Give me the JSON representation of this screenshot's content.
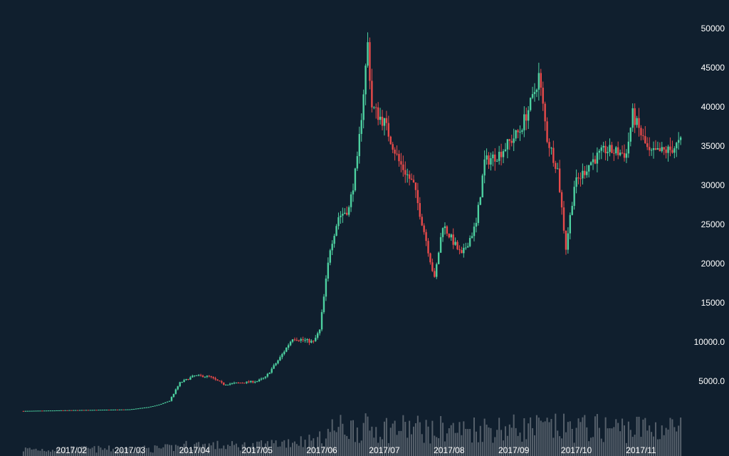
{
  "chart_data": {
    "type": "candlestick",
    "title": "",
    "xlabel": "",
    "ylabel": "",
    "grid": false,
    "legend": "none",
    "y_axis": {
      "position": "right",
      "range": [
        0,
        52000
      ],
      "ticks": [
        {
          "value": 5000,
          "label": "5000.0"
        },
        {
          "value": 10000,
          "label": "10000.0"
        },
        {
          "value": 15000,
          "label": "15000"
        },
        {
          "value": 20000,
          "label": "20000"
        },
        {
          "value": 25000,
          "label": "25000"
        },
        {
          "value": 30000,
          "label": "30000"
        },
        {
          "value": 35000,
          "label": "35000"
        },
        {
          "value": 40000,
          "label": "40000"
        },
        {
          "value": 45000,
          "label": "45000"
        },
        {
          "value": 50000,
          "label": "50000"
        }
      ]
    },
    "x_axis": {
      "range": [
        "2017-01-08",
        "2017-11-22"
      ],
      "ticks": [
        {
          "date": "2017-02-01",
          "label": "2017/02"
        },
        {
          "date": "2017-03-01",
          "label": "2017/03"
        },
        {
          "date": "2017-04-01",
          "label": "2017/04"
        },
        {
          "date": "2017-05-01",
          "label": "2017/05"
        },
        {
          "date": "2017-06-01",
          "label": "2017/06"
        },
        {
          "date": "2017-07-01",
          "label": "2017/07"
        },
        {
          "date": "2017-08-01",
          "label": "2017/08"
        },
        {
          "date": "2017-09-01",
          "label": "2017/09"
        },
        {
          "date": "2017-10-01",
          "label": "2017/10"
        },
        {
          "date": "2017-11-01",
          "label": "2017/11"
        }
      ]
    },
    "price_anchors": [
      [
        "2017-01-09",
        1200
      ],
      [
        "2017-02-01",
        1300
      ],
      [
        "2017-03-01",
        1400
      ],
      [
        "2017-03-10",
        1700
      ],
      [
        "2017-03-15",
        2000
      ],
      [
        "2017-03-20",
        2500
      ],
      [
        "2017-03-25",
        4800
      ],
      [
        "2017-04-01",
        5700
      ],
      [
        "2017-04-08",
        5600
      ],
      [
        "2017-04-15",
        4600
      ],
      [
        "2017-05-01",
        5000
      ],
      [
        "2017-05-05",
        5500
      ],
      [
        "2017-05-12",
        8000
      ],
      [
        "2017-05-18",
        10500
      ],
      [
        "2017-05-28",
        10000
      ],
      [
        "2017-05-31",
        11500
      ],
      [
        "2017-06-05",
        22000
      ],
      [
        "2017-06-09",
        26000
      ],
      [
        "2017-06-14",
        27000
      ],
      [
        "2017-06-18",
        33000
      ],
      [
        "2017-06-21",
        42000
      ],
      [
        "2017-06-23",
        48000
      ],
      [
        "2017-06-25",
        40000
      ],
      [
        "2017-07-01",
        38000
      ],
      [
        "2017-07-08",
        33000
      ],
      [
        "2017-07-15",
        30000
      ],
      [
        "2017-07-21",
        23000
      ],
      [
        "2017-07-25",
        18000
      ],
      [
        "2017-07-29",
        25000
      ],
      [
        "2017-08-07",
        21000
      ],
      [
        "2017-08-14",
        25000
      ],
      [
        "2017-08-18",
        33000
      ],
      [
        "2017-08-25",
        34000
      ],
      [
        "2017-09-04",
        37000
      ],
      [
        "2017-09-10",
        41000
      ],
      [
        "2017-09-13",
        44000
      ],
      [
        "2017-09-17",
        36000
      ],
      [
        "2017-09-22",
        32000
      ],
      [
        "2017-09-26",
        22000
      ],
      [
        "2017-09-30",
        30000
      ],
      [
        "2017-10-08",
        33000
      ],
      [
        "2017-10-15",
        34500
      ],
      [
        "2017-10-25",
        34000
      ],
      [
        "2017-10-28",
        39000
      ],
      [
        "2017-11-05",
        34000
      ],
      [
        "2017-11-15",
        34500
      ],
      [
        "2017-11-20",
        35500
      ]
    ],
    "colors": {
      "up": "#4dd0a0",
      "down": "#e84a4a",
      "volume": "#6e7780",
      "background": "#101f2e",
      "axis_text": "#ffffff"
    }
  }
}
